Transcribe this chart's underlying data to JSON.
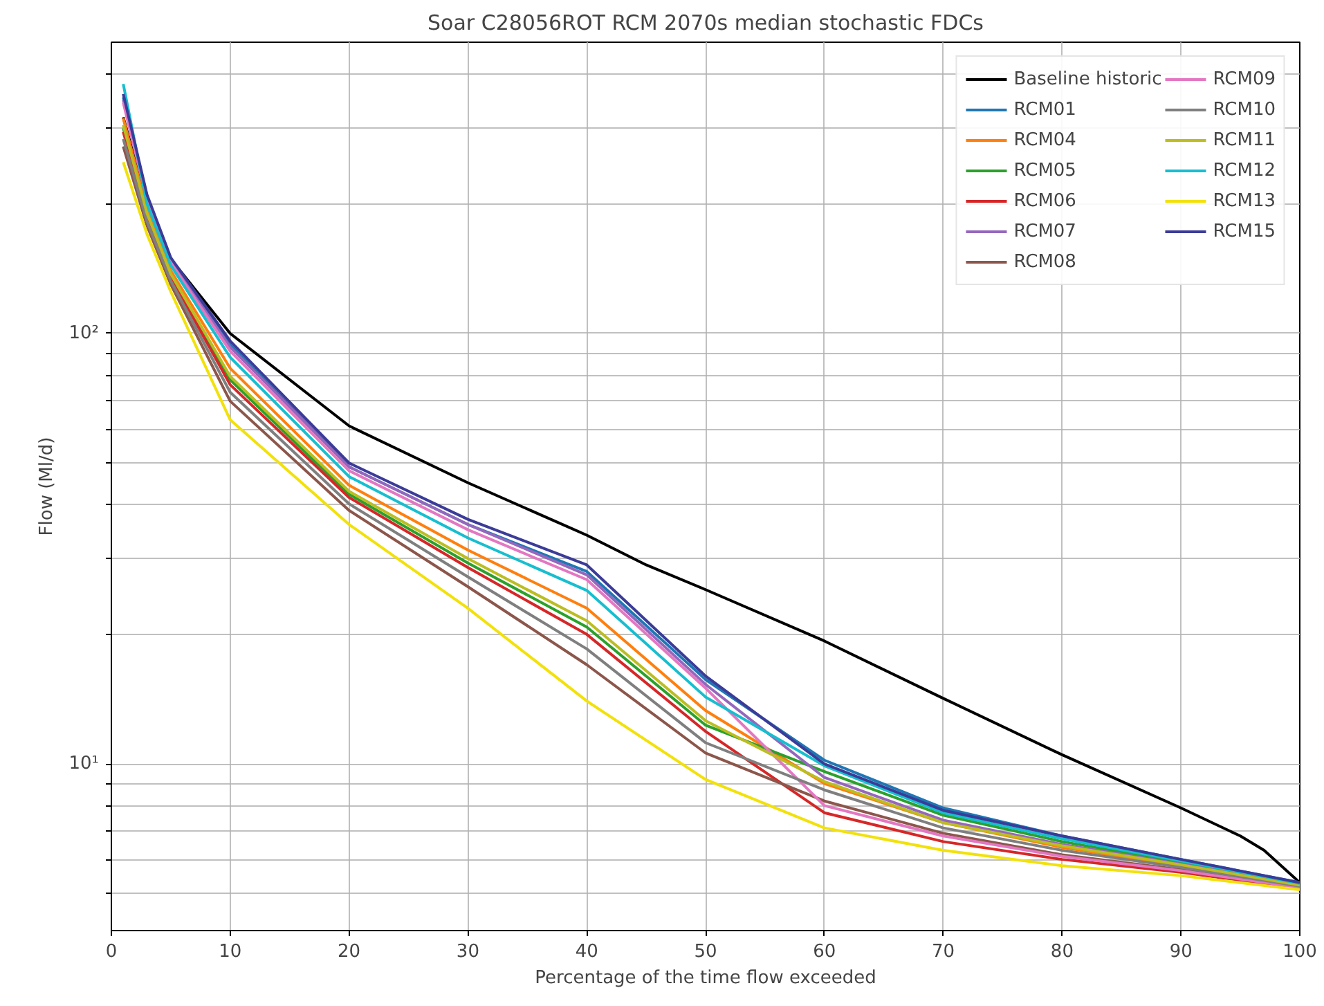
{
  "chart_data": {
    "type": "line",
    "title": "Soar C28056ROT RCM 2070s median stochastic FDCs",
    "xlabel": "Percentage of the time flow exceeded",
    "ylabel": "Flow (Ml/d)",
    "log": "y",
    "grid": true,
    "legend": "top right",
    "line_style": "solid",
    "marker": "none",
    "xlim": [
      0,
      100
    ],
    "xticks": [
      0,
      10,
      20,
      30,
      40,
      50,
      60,
      70,
      80,
      90,
      100
    ],
    "ylim": [
      4.1,
      475
    ],
    "yticks": [
      {
        "value": 5,
        "label": null
      },
      {
        "value": 6,
        "label": null
      },
      {
        "value": 7,
        "label": null
      },
      {
        "value": 8,
        "label": null
      },
      {
        "value": 9,
        "label": null
      },
      {
        "value": 10,
        "label": "10¹"
      },
      {
        "value": 20,
        "label": null
      },
      {
        "value": 30,
        "label": null
      },
      {
        "value": 40,
        "label": null
      },
      {
        "value": 50,
        "label": null
      },
      {
        "value": 60,
        "label": null
      },
      {
        "value": 70,
        "label": null
      },
      {
        "value": 80,
        "label": null
      },
      {
        "value": 90,
        "label": null
      },
      {
        "value": 100,
        "label": "10²"
      },
      {
        "value": 200,
        "label": null
      },
      {
        "value": 300,
        "label": null
      },
      {
        "value": 400,
        "label": null
      }
    ],
    "x": [
      1,
      3,
      5,
      10,
      20,
      30,
      40,
      50,
      60,
      70,
      80,
      90,
      100
    ],
    "series": [
      {
        "name": "Baseline historic",
        "color": "#000000",
        "x": [
          1,
          3,
          5,
          10,
          20,
          30,
          40,
          45,
          50,
          60,
          70,
          80,
          90,
          95,
          97,
          100
        ],
        "values": [
          318,
          200,
          149,
          100,
          61,
          45,
          34,
          29,
          25.4,
          19.3,
          14.2,
          10.5,
          7.9,
          6.8,
          6.3,
          5.3
        ]
      },
      {
        "name": "RCM01",
        "color": "#1f77b4",
        "values": [
          354,
          208,
          149,
          94,
          49,
          36,
          28,
          15.7,
          10.2,
          7.9,
          6.8,
          6.0,
          5.3
        ]
      },
      {
        "name": "RCM04",
        "color": "#ff7f0e",
        "values": [
          316,
          194,
          140,
          83,
          44.4,
          31.4,
          23,
          13.3,
          9.0,
          7.3,
          6.4,
          5.8,
          5.22
        ]
      },
      {
        "name": "RCM05",
        "color": "#2ca02c",
        "values": [
          300,
          188,
          136,
          78,
          42.3,
          29.3,
          20.8,
          12.3,
          9.6,
          7.6,
          6.6,
          5.9,
          5.26
        ]
      },
      {
        "name": "RCM06",
        "color": "#d62728",
        "values": [
          294,
          186,
          135,
          76,
          41.6,
          28.6,
          20,
          11.9,
          7.7,
          6.6,
          6.0,
          5.6,
          5.14
        ]
      },
      {
        "name": "RCM07",
        "color": "#9467bd",
        "values": [
          349,
          206,
          147.5,
          93,
          49,
          36,
          27.5,
          15.3,
          9.3,
          7.4,
          6.5,
          5.85,
          5.24
        ]
      },
      {
        "name": "RCM08",
        "color": "#8c564b",
        "values": [
          272,
          178,
          130,
          69.6,
          38.8,
          25.8,
          17,
          10.6,
          8.2,
          6.9,
          6.15,
          5.68,
          5.17
        ]
      },
      {
        "name": "RCM09",
        "color": "#e377c2",
        "values": [
          344,
          204,
          146,
          91,
          48,
          35,
          26.8,
          15.0,
          8.0,
          6.8,
          6.1,
          5.65,
          5.16
        ]
      },
      {
        "name": "RCM10",
        "color": "#7f7f7f",
        "values": [
          283,
          182,
          132.5,
          73,
          40.2,
          27.2,
          18.5,
          11.2,
          8.7,
          7.1,
          6.3,
          5.75,
          5.2
        ]
      },
      {
        "name": "RCM11",
        "color": "#bcbd22",
        "values": [
          305,
          190,
          137.5,
          79.5,
          43,
          30,
          21.5,
          12.6,
          9.1,
          7.3,
          6.45,
          5.83,
          5.23
        ]
      },
      {
        "name": "RCM12",
        "color": "#17becf",
        "values": [
          380,
          200,
          144,
          88,
          46.5,
          33.5,
          25.3,
          14.3,
          9.9,
          7.7,
          6.7,
          5.95,
          5.28
        ]
      },
      {
        "name": "RCM13",
        "color": "#f2e10a",
        "values": [
          250,
          170,
          125,
          63,
          36,
          23,
          14,
          9.2,
          7.1,
          6.3,
          5.8,
          5.5,
          5.1
        ]
      },
      {
        "name": "RCM15",
        "color": "#3b3b98",
        "values": [
          360,
          210,
          150,
          96,
          50,
          37,
          29,
          16,
          10.0,
          7.8,
          6.8,
          6.0,
          5.3
        ]
      }
    ]
  }
}
